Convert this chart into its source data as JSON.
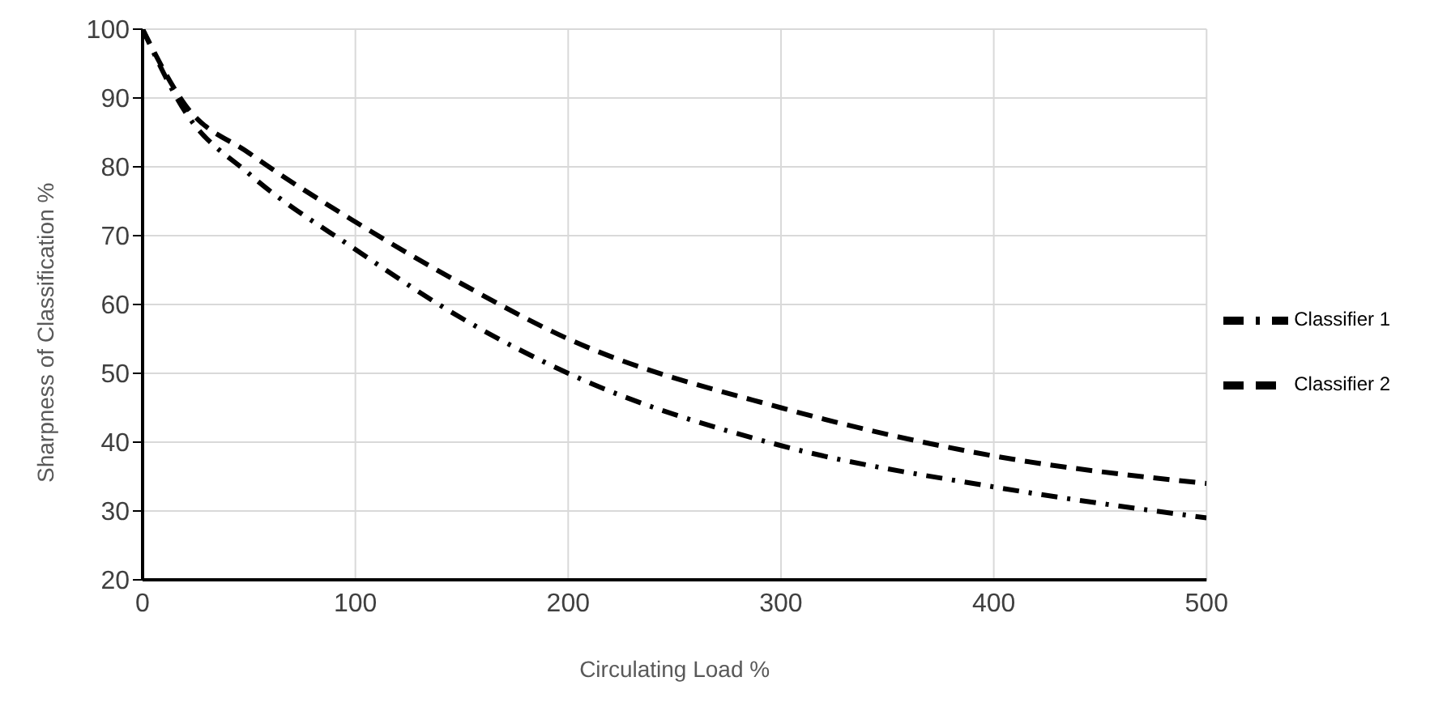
{
  "chart_data": {
    "type": "line",
    "xlabel": "Circulating Load %",
    "ylabel": "Sharpness of Classification %",
    "x": [
      0,
      20,
      50,
      100,
      150,
      200,
      300,
      400,
      500
    ],
    "series": [
      {
        "name": "Classifier 1",
        "color": "#000000",
        "line_style": "dashdot",
        "values": [
          100,
          88,
          79,
          68,
          58,
          50,
          39.5,
          33.5,
          29
        ]
      },
      {
        "name": "Classifier 2",
        "color": "#000000",
        "line_style": "dashed",
        "values": [
          100,
          89,
          82,
          72,
          63,
          55,
          45,
          38,
          34
        ]
      }
    ],
    "xlim": [
      0,
      500
    ],
    "xticks": [
      0,
      100,
      200,
      300,
      400,
      500
    ],
    "ylim": [
      20,
      100
    ],
    "yticks": [
      20,
      30,
      40,
      50,
      60,
      70,
      80,
      90,
      100
    ],
    "grid": true,
    "legend": "right",
    "marker": "none"
  }
}
